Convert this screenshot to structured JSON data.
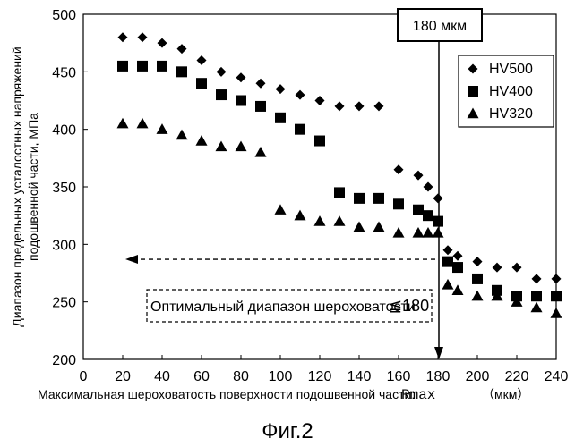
{
  "chart_data": {
    "type": "scatter",
    "xlabel": "Максимальная шероховатость поверхности подошвенной части:",
    "xlabel_symbol": "Rmax",
    "xlabel_unit": "（мкм）",
    "ylabel_line1": "Диапазон предельных усталостных напряжений",
    "ylabel_line2": "подошвенной части, МПа",
    "xlim": [
      0,
      240
    ],
    "ylim": [
      200,
      500
    ],
    "xticks": [
      0,
      20,
      40,
      60,
      80,
      100,
      120,
      140,
      160,
      180,
      200,
      220,
      240
    ],
    "yticks": [
      200,
      250,
      300,
      350,
      400,
      450,
      500
    ],
    "grid": false,
    "legend_position": "top-right",
    "series": [
      {
        "name": "HV500",
        "marker": "diamond",
        "points": [
          [
            20,
            480
          ],
          [
            30,
            480
          ],
          [
            40,
            475
          ],
          [
            50,
            470
          ],
          [
            60,
            460
          ],
          [
            70,
            450
          ],
          [
            80,
            445
          ],
          [
            90,
            440
          ],
          [
            100,
            435
          ],
          [
            110,
            430
          ],
          [
            120,
            425
          ],
          [
            130,
            420
          ],
          [
            140,
            420
          ],
          [
            150,
            420
          ],
          [
            160,
            365
          ],
          [
            170,
            360
          ],
          [
            175,
            350
          ],
          [
            180,
            340
          ],
          [
            185,
            295
          ],
          [
            190,
            290
          ],
          [
            200,
            285
          ],
          [
            210,
            280
          ],
          [
            220,
            280
          ],
          [
            230,
            270
          ],
          [
            240,
            270
          ]
        ]
      },
      {
        "name": "HV400",
        "marker": "square",
        "points": [
          [
            20,
            455
          ],
          [
            30,
            455
          ],
          [
            40,
            455
          ],
          [
            50,
            450
          ],
          [
            60,
            440
          ],
          [
            70,
            430
          ],
          [
            80,
            425
          ],
          [
            90,
            420
          ],
          [
            100,
            410
          ],
          [
            110,
            400
          ],
          [
            120,
            390
          ],
          [
            130,
            345
          ],
          [
            140,
            340
          ],
          [
            150,
            340
          ],
          [
            160,
            335
          ],
          [
            170,
            330
          ],
          [
            175,
            325
          ],
          [
            180,
            320
          ],
          [
            185,
            285
          ],
          [
            190,
            280
          ],
          [
            200,
            270
          ],
          [
            210,
            260
          ],
          [
            220,
            255
          ],
          [
            230,
            255
          ],
          [
            240,
            255
          ]
        ]
      },
      {
        "name": "HV320",
        "marker": "triangle",
        "points": [
          [
            20,
            405
          ],
          [
            30,
            405
          ],
          [
            40,
            400
          ],
          [
            50,
            395
          ],
          [
            60,
            390
          ],
          [
            70,
            385
          ],
          [
            80,
            385
          ],
          [
            90,
            380
          ],
          [
            100,
            330
          ],
          [
            110,
            325
          ],
          [
            120,
            320
          ],
          [
            130,
            320
          ],
          [
            140,
            315
          ],
          [
            150,
            315
          ],
          [
            160,
            310
          ],
          [
            170,
            310
          ],
          [
            175,
            310
          ],
          [
            180,
            310
          ],
          [
            185,
            265
          ],
          [
            190,
            260
          ],
          [
            200,
            255
          ],
          [
            210,
            255
          ],
          [
            220,
            250
          ],
          [
            230,
            245
          ],
          [
            240,
            240
          ]
        ]
      }
    ],
    "annotations": {
      "threshold_label": "180 мкм",
      "threshold_x": 180,
      "range_label": "Оптимальный диапазон шероховатости",
      "range_symbol": "≦180",
      "range_arrow_y": 287
    },
    "caption": "Фиг.2"
  }
}
